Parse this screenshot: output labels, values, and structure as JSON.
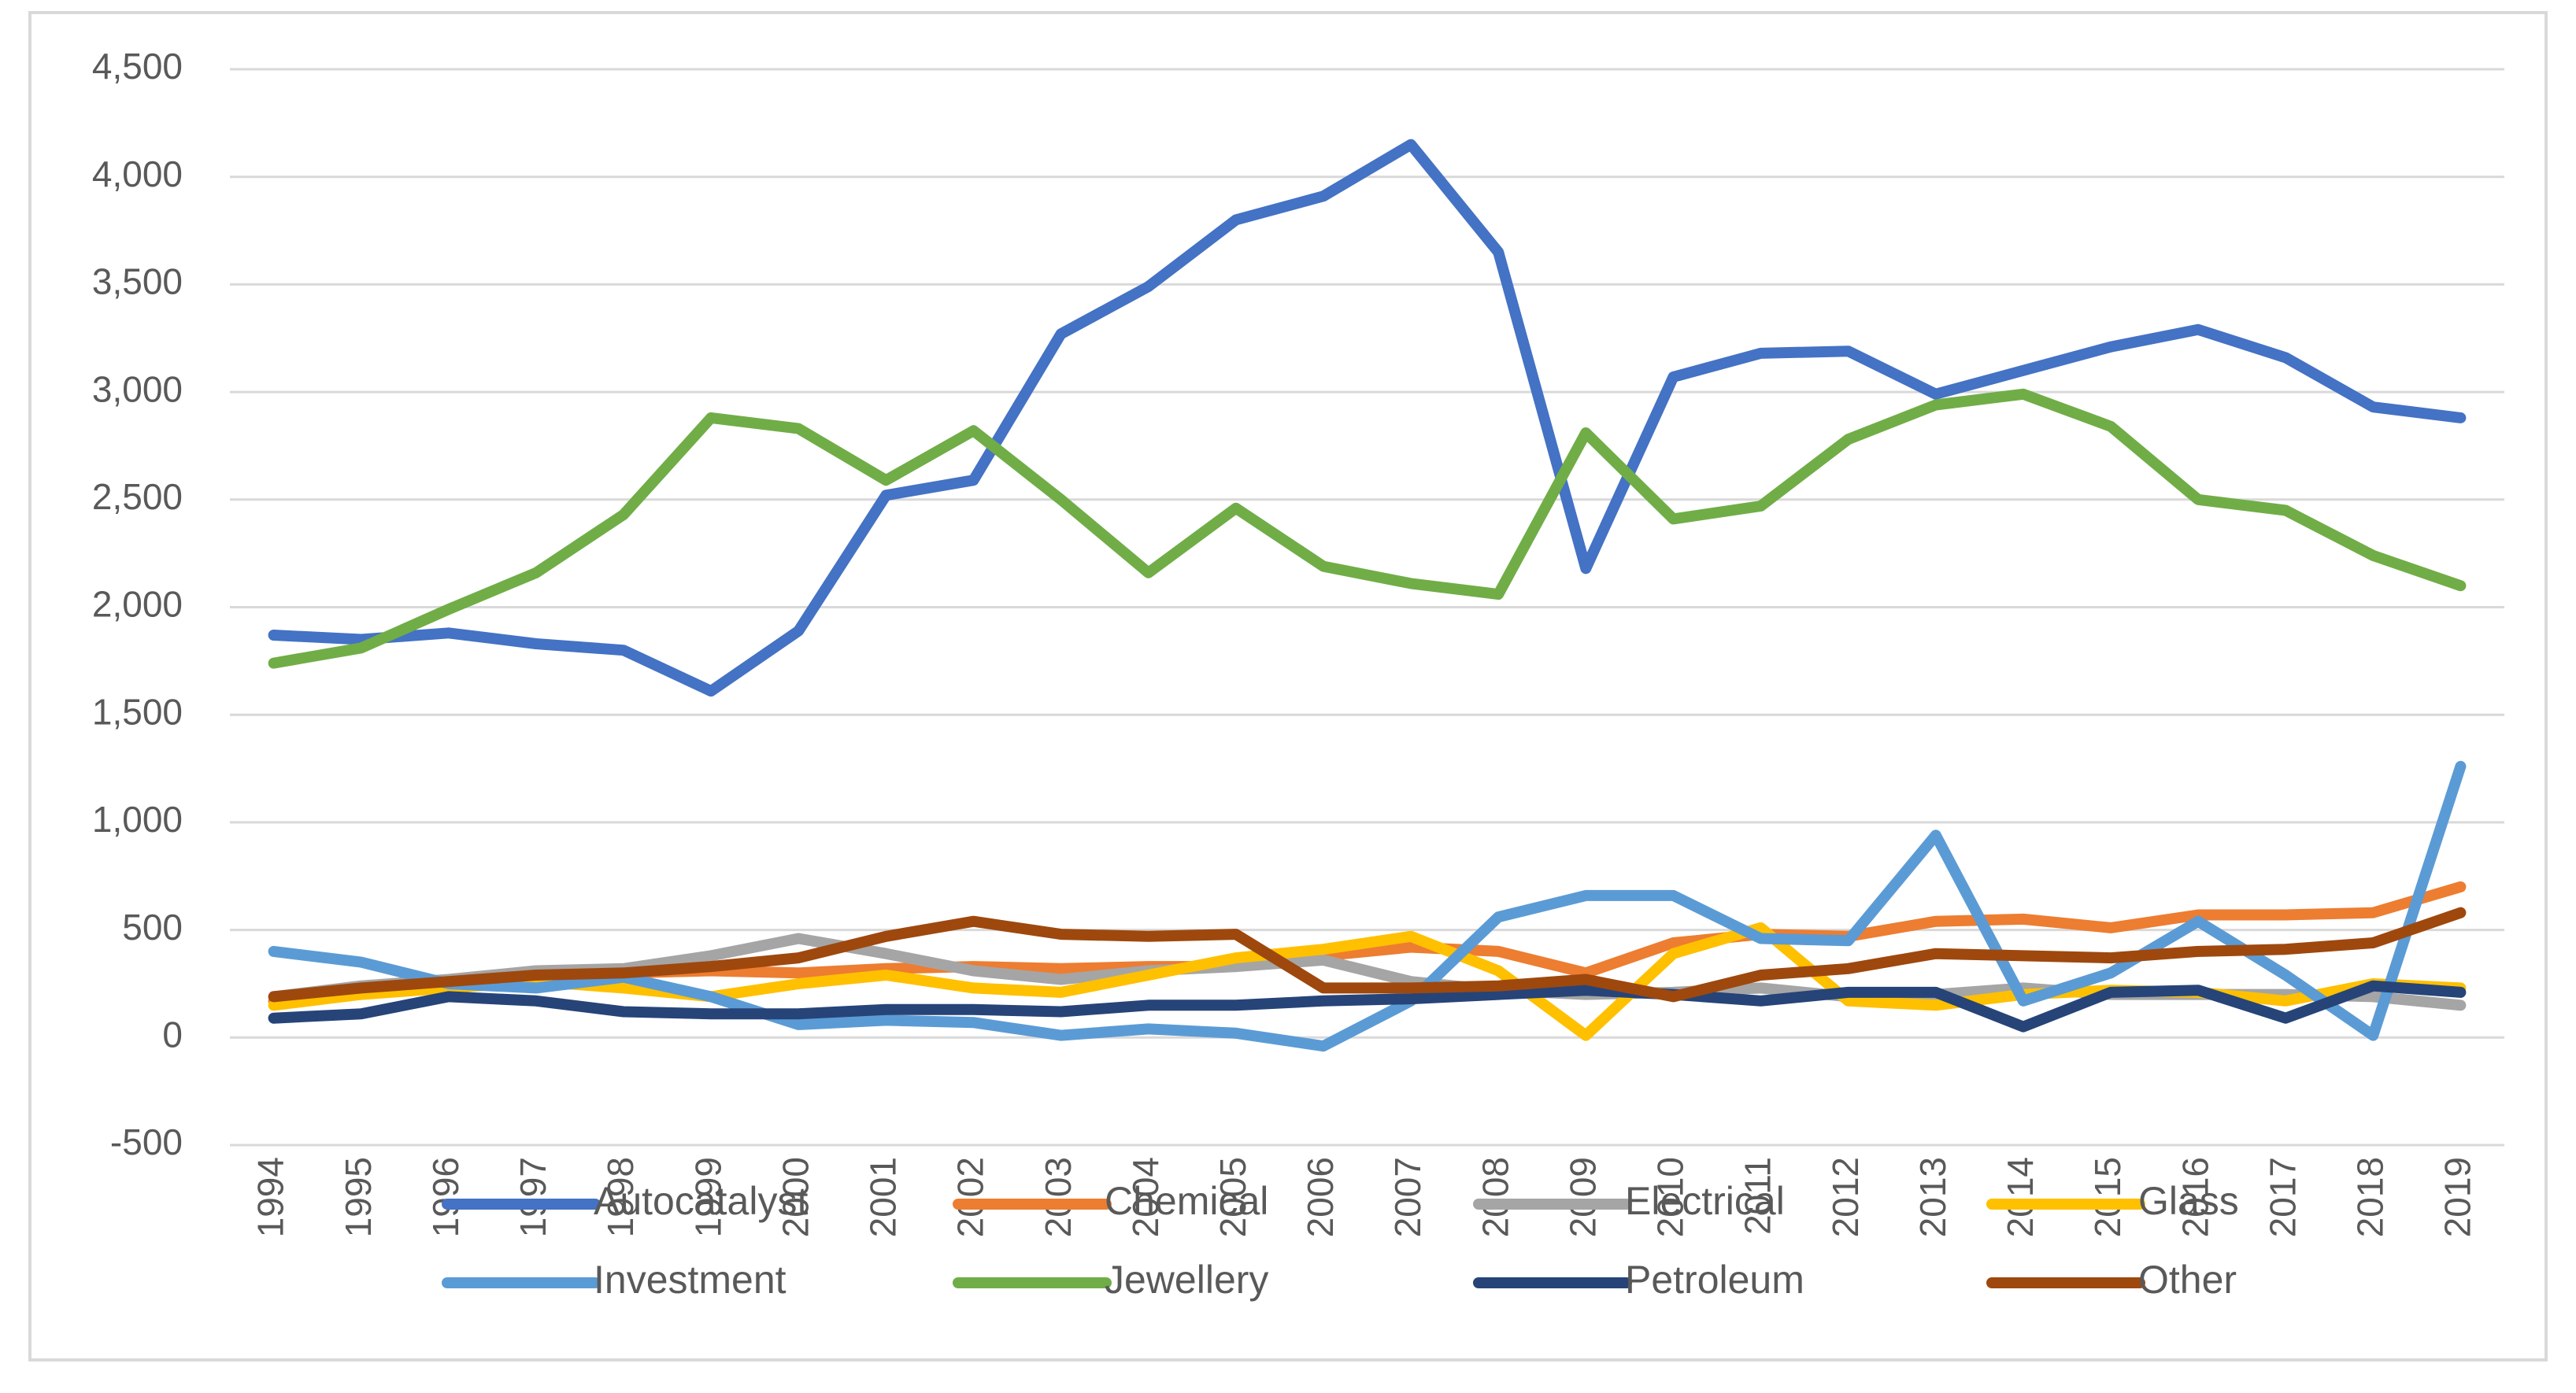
{
  "chart_data": {
    "type": "line",
    "categories": [
      "1994",
      "1995",
      "1996",
      "1997",
      "1998",
      "1999",
      "2000",
      "2001",
      "2002",
      "2003",
      "2004",
      "2005",
      "2006",
      "2007",
      "2008",
      "2009",
      "2010",
      "2011",
      "2012",
      "2013",
      "2014",
      "2015",
      "2016",
      "2017",
      "2018",
      "2019"
    ],
    "ylim": [
      -500,
      4500
    ],
    "yticks": [
      -500,
      0,
      500,
      {
        "value": 1000,
        "label": "1,000"
      },
      {
        "value": 1500,
        "label": "1,500"
      },
      {
        "value": 2000,
        "label": "2,000"
      },
      {
        "value": 2500,
        "label": "2,500"
      },
      {
        "value": 3000,
        "label": "3,000"
      },
      {
        "value": 3500,
        "label": "3,500"
      },
      {
        "value": 4000,
        "label": "4,000"
      },
      {
        "value": 4500,
        "label": "4,500"
      }
    ],
    "grid": true,
    "legend": "bottom",
    "series": [
      {
        "name": "Autocatalyst",
        "color": "#4472c4",
        "values": [
          1870,
          1850,
          1880,
          1830,
          1800,
          1610,
          1890,
          2520,
          2590,
          3270,
          3490,
          3800,
          3910,
          4150,
          3650,
          2180,
          3070,
          3180,
          3190,
          2990,
          3100,
          3210,
          3290,
          3160,
          2930,
          2880
        ]
      },
      {
        "name": "Chemical",
        "color": "#ed7d31",
        "values": [
          170,
          220,
          250,
          290,
          300,
          310,
          300,
          320,
          330,
          320,
          330,
          330,
          380,
          420,
          400,
          300,
          440,
          480,
          470,
          540,
          550,
          510,
          570,
          570,
          580,
          700
        ]
      },
      {
        "name": "Electrical",
        "color": "#a5a5a5",
        "values": [
          190,
          240,
          270,
          310,
          320,
          380,
          460,
          390,
          310,
          270,
          310,
          330,
          360,
          260,
          220,
          200,
          210,
          230,
          190,
          200,
          230,
          200,
          200,
          200,
          190,
          150
        ]
      },
      {
        "name": "Glass",
        "color": "#ffc000",
        "values": [
          150,
          200,
          230,
          260,
          230,
          190,
          250,
          290,
          230,
          210,
          290,
          370,
          410,
          470,
          310,
          10,
          390,
          510,
          170,
          150,
          200,
          220,
          210,
          170,
          250,
          230
        ]
      },
      {
        "name": "Investment",
        "color": "#5b9bd5",
        "values": [
          400,
          350,
          250,
          230,
          280,
          190,
          60,
          80,
          70,
          10,
          40,
          20,
          -40,
          170,
          560,
          660,
          660,
          460,
          450,
          940,
          170,
          300,
          540,
          290,
          10,
          1260
        ]
      },
      {
        "name": "Jewellery",
        "color": "#70ad47",
        "values": [
          1740,
          1810,
          1990,
          2160,
          2430,
          2880,
          2830,
          2590,
          2820,
          2500,
          2160,
          2460,
          2190,
          2110,
          2060,
          2810,
          2410,
          2470,
          2780,
          2940,
          2990,
          2840,
          2500,
          2450,
          2240,
          2100
        ]
      },
      {
        "name": "Petroleum",
        "color": "#264478",
        "values": [
          90,
          110,
          190,
          170,
          120,
          110,
          110,
          130,
          130,
          120,
          150,
          150,
          170,
          180,
          200,
          220,
          200,
          170,
          210,
          210,
          50,
          210,
          220,
          90,
          240,
          210
        ]
      },
      {
        "name": "Other",
        "color": "#9e480e",
        "values": [
          190,
          230,
          260,
          290,
          300,
          330,
          370,
          470,
          540,
          480,
          470,
          480,
          230,
          230,
          240,
          270,
          190,
          290,
          320,
          390,
          380,
          370,
          400,
          410,
          440,
          580
        ]
      }
    ]
  }
}
